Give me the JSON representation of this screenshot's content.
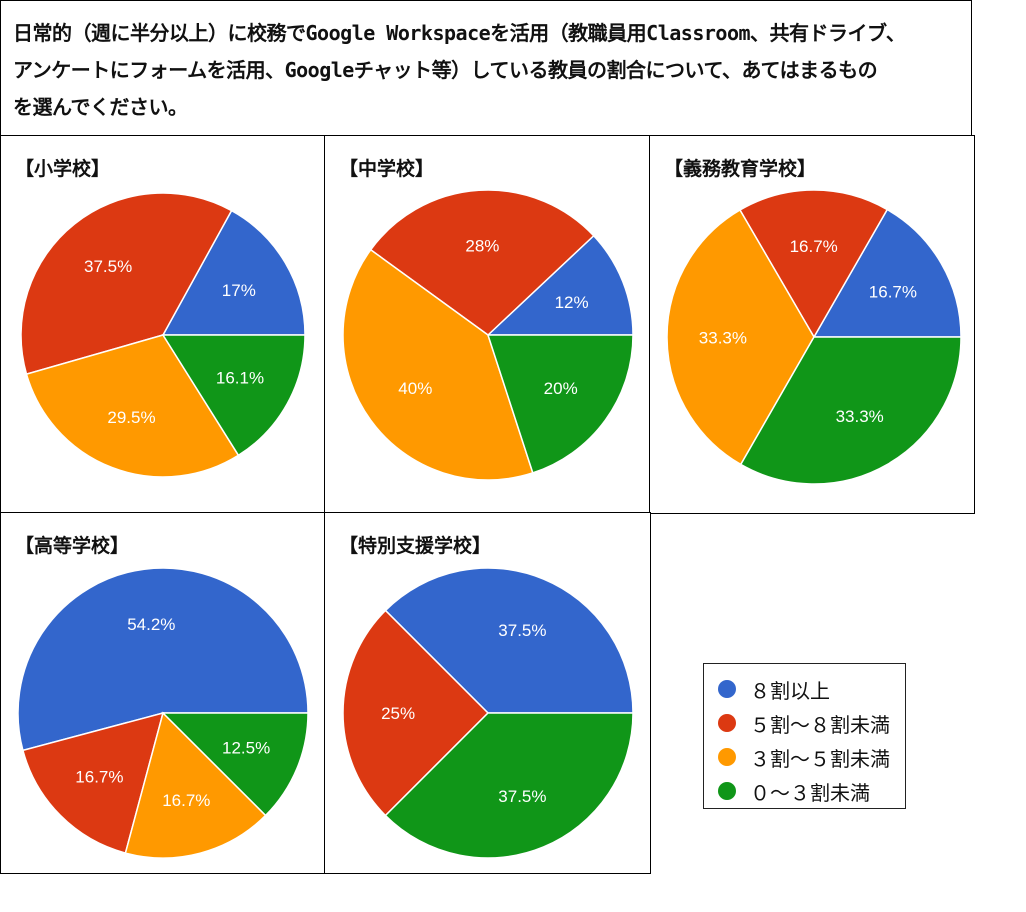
{
  "question": {
    "line1": "日常的（週に半分以上）に校務でGoogle Workspaceを活用（教職員用Classroom、共有ドライブ、",
    "line2": "アンケートにフォームを活用、Googleチャット等）している教員の割合について、あてはまるもの",
    "line3": "を選んでください。"
  },
  "colors": {
    "blue": "#3366cc",
    "red": "#dc3912",
    "orange": "#ff9900",
    "green": "#109618"
  },
  "legend": [
    {
      "label": "８割以上",
      "color": "#3366cc"
    },
    {
      "label": "５割～８割未満",
      "color": "#dc3912"
    },
    {
      "label": "３割～５割未満",
      "color": "#ff9900"
    },
    {
      "label": "０～３割未満",
      "color": "#109618"
    }
  ],
  "chart_data": [
    {
      "type": "pie",
      "title": "【小学校】",
      "categories": [
        "８割以上",
        "５割～８割未満",
        "３割～５割未満",
        "０～３割未満"
      ],
      "values": [
        17,
        37.5,
        29.5,
        16.1
      ],
      "labels": [
        "17%",
        "37.5%",
        "29.5%",
        "16.1%"
      ]
    },
    {
      "type": "pie",
      "title": "【中学校】",
      "categories": [
        "８割以上",
        "５割～８割未満",
        "３割～５割未満",
        "０～３割未満"
      ],
      "values": [
        12,
        28,
        40,
        20
      ],
      "labels": [
        "12%",
        "28%",
        "40%",
        "20%"
      ]
    },
    {
      "type": "pie",
      "title": "【義務教育学校】",
      "categories": [
        "８割以上",
        "５割～８割未満",
        "３割～５割未満",
        "０～３割未満"
      ],
      "values": [
        16.7,
        16.7,
        33.3,
        33.3
      ],
      "labels": [
        "16.7%",
        "16.7%",
        "33.3%",
        "33.3%"
      ]
    },
    {
      "type": "pie",
      "title": "【高等学校】",
      "categories": [
        "８割以上",
        "５割～８割未満",
        "３割～５割未満",
        "０～３割未満"
      ],
      "values": [
        54.2,
        16.7,
        16.7,
        12.5
      ],
      "labels": [
        "54.2%",
        "16.7%",
        "16.7%",
        "12.5%"
      ]
    },
    {
      "type": "pie",
      "title": "【特別支援学校】",
      "categories": [
        "８割以上",
        "５割～８割未満",
        "３割～５割未満",
        "０～３割未満"
      ],
      "values": [
        37.5,
        25,
        0,
        37.5
      ],
      "labels": [
        "37.5%",
        "25%",
        "",
        "37.5%"
      ]
    }
  ]
}
